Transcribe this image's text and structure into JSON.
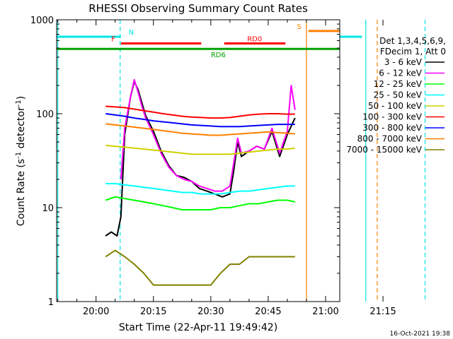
{
  "chart_data": {
    "type": "line",
    "title": "RHESSI Observing Summary Count Rates",
    "xlabel": "Start Time (22-Apr-11 19:49:42)",
    "ylabel_main": "Count Rate (s",
    "ylabel_sup1": "-1",
    "ylabel_mid": " detector",
    "ylabel_sup2": "-1",
    "ylabel_end": ")",
    "yscale": "log",
    "ylim": [
      1,
      1000
    ],
    "xlim_min": [
      -10.3,
      63.7
    ],
    "x_ticks_min": [
      0,
      15,
      30,
      45,
      60,
      75
    ],
    "x_tick_labels": [
      "20:00",
      "20:15",
      "20:30",
      "20:45",
      "21:00",
      "21:15"
    ],
    "y_ticks": [
      1,
      10,
      100,
      1000
    ],
    "y_tick_labels": [
      "1",
      "10",
      "100",
      "1000"
    ],
    "legend_header": [
      "Det 1,3,4,5,6,9,",
      "FDecim 1, Att 0"
    ],
    "legend_position": "right",
    "timestamp": "16-Oct-2021 19:38",
    "flags": [
      {
        "label": "N",
        "color": "#00e5e5",
        "start": -10.3,
        "end": 6.5,
        "y": 660,
        "label_x": 8.5
      },
      {
        "label": "N",
        "color": "#00e5e5",
        "start": 69.5,
        "end": 84.5,
        "y": 660,
        "label_x": null
      },
      {
        "label": "S",
        "color": "#ff8000",
        "start": 55.5,
        "end": 72.5,
        "y": 760,
        "label_x": 52.5
      },
      {
        "label": "F",
        "color": "#ff0000",
        "start": 6.5,
        "end": 27.5,
        "y": 560,
        "label_x": 4.0
      },
      {
        "label": "RD0",
        "color": "#ff0000",
        "start": 33.5,
        "end": 49.5,
        "y": 560,
        "label_x": 39.5
      },
      {
        "label": "RD6",
        "color": "#00a000",
        "start": -10.3,
        "end": 84.5,
        "y": 490,
        "label_x": 30.0
      }
    ],
    "vlines": [
      {
        "x": -10.0,
        "color": "#00e5e5",
        "dash": false
      },
      {
        "x": 6.3,
        "color": "#00e5e5",
        "dash": true
      },
      {
        "x": 55.0,
        "color": "#ff8000",
        "dash": false
      },
      {
        "x": 70.5,
        "color": "#00e5e5",
        "dash": false
      },
      {
        "x": 73.5,
        "color": "#ff8000",
        "dash": true
      },
      {
        "x": 86.0,
        "color": "#00e5e5",
        "dash": true
      }
    ],
    "series": [
      {
        "name": "3 - 6 keV",
        "color": "#000000",
        "x": [
          2.5,
          4,
          5.5,
          6.5,
          7.5,
          9,
          10,
          11,
          12,
          13,
          15,
          17,
          19,
          21,
          23,
          25,
          27,
          29,
          31,
          33,
          35,
          36,
          37,
          38,
          40,
          42,
          44,
          46,
          48,
          50,
          52
        ],
        "y": [
          5,
          5.5,
          5,
          8,
          60,
          150,
          220,
          180,
          130,
          95,
          65,
          40,
          28,
          22,
          21,
          19,
          16,
          15,
          14,
          13,
          14,
          25,
          50,
          35,
          40,
          45,
          42,
          65,
          35,
          60,
          90
        ]
      },
      {
        "name": "6 - 12 keV",
        "color": "#ff00ff",
        "x": [
          6.5,
          7.5,
          9,
          10,
          11,
          12,
          13,
          15,
          17,
          19,
          21,
          23,
          25,
          27,
          29,
          31,
          33,
          35,
          36,
          37,
          38,
          40,
          42,
          44,
          46,
          48,
          50,
          51,
          52
        ],
        "y": [
          20,
          70,
          150,
          230,
          170,
          120,
          90,
          60,
          38,
          27,
          22,
          20,
          19,
          17,
          16,
          15,
          15,
          17,
          30,
          55,
          38,
          40,
          45,
          42,
          70,
          38,
          65,
          200,
          110
        ]
      },
      {
        "name": "12 - 25 keV",
        "color": "#00ff00",
        "x": [
          2.5,
          5,
          7.5,
          10,
          12.5,
          15,
          17.5,
          20,
          22.5,
          25,
          27.5,
          30,
          32.5,
          35,
          37.5,
          40,
          42.5,
          45,
          47.5,
          50,
          52
        ],
        "y": [
          12,
          13,
          12.5,
          12,
          11.5,
          11,
          10.5,
          10,
          9.5,
          9.5,
          9.5,
          9.5,
          10,
          10,
          10.5,
          11,
          11,
          11.5,
          12,
          12,
          11.5
        ]
      },
      {
        "name": "25 - 50 keV",
        "color": "#00ffff",
        "x": [
          2.5,
          5,
          7.5,
          10,
          12.5,
          15,
          17.5,
          20,
          22.5,
          25,
          27.5,
          30,
          32.5,
          35,
          37.5,
          40,
          42.5,
          45,
          47.5,
          50,
          52
        ],
        "y": [
          18,
          18,
          17.5,
          17,
          16.5,
          16,
          15.5,
          15,
          14.5,
          14.5,
          14,
          14,
          14,
          14.5,
          15,
          15,
          15.5,
          16,
          16.5,
          17,
          17
        ]
      },
      {
        "name": "50 - 100 keV",
        "color": "#d0d000",
        "x": [
          2.5,
          5,
          7.5,
          10,
          12.5,
          15,
          17.5,
          20,
          22.5,
          25,
          27.5,
          30,
          32.5,
          35,
          37.5,
          40,
          42.5,
          45,
          47.5,
          50,
          52
        ],
        "y": [
          46,
          45,
          44,
          43,
          42,
          41,
          40,
          39,
          38,
          37,
          37,
          37,
          37,
          37,
          38,
          39,
          40,
          41,
          42,
          42,
          43
        ]
      },
      {
        "name": "100 - 300 keV",
        "color": "#ff0000",
        "x": [
          2.5,
          5,
          7.5,
          10,
          12.5,
          15,
          17.5,
          20,
          22.5,
          25,
          27.5,
          30,
          32.5,
          35,
          37.5,
          40,
          42.5,
          45,
          47.5,
          50,
          52
        ],
        "y": [
          120,
          118,
          116,
          112,
          108,
          104,
          100,
          97,
          94,
          92,
          91,
          90,
          90,
          91,
          94,
          97,
          99,
          100,
          100,
          99,
          99
        ]
      },
      {
        "name": "300 - 800 keV",
        "color": "#0000ff",
        "x": [
          2.5,
          5,
          7.5,
          10,
          12.5,
          15,
          17.5,
          20,
          22.5,
          25,
          27.5,
          30,
          32.5,
          35,
          37.5,
          40,
          42.5,
          45,
          47.5,
          50,
          52
        ],
        "y": [
          100,
          97,
          94,
          90,
          87,
          84,
          82,
          80,
          78,
          76,
          75,
          74,
          73,
          73,
          73,
          74,
          75,
          76,
          77,
          77,
          77
        ]
      },
      {
        "name": "800 - 7000 keV",
        "color": "#ff8000",
        "x": [
          2.5,
          5,
          7.5,
          10,
          12.5,
          15,
          17.5,
          20,
          22.5,
          25,
          27.5,
          30,
          32.5,
          35,
          37.5,
          40,
          42.5,
          45,
          47.5,
          50,
          52
        ],
        "y": [
          78,
          76,
          74,
          72,
          70,
          68,
          66,
          64,
          62,
          61,
          60,
          59,
          59,
          60,
          61,
          62,
          63,
          64,
          63,
          62,
          61
        ]
      },
      {
        "name": "7000 - 15000 keV",
        "color": "#808000",
        "x": [
          2.5,
          5,
          7.5,
          10,
          12.5,
          15,
          17.5,
          20,
          22.5,
          25,
          27.5,
          30,
          32.5,
          35,
          37.5,
          40,
          42.5,
          45,
          47.5,
          50,
          52
        ],
        "y": [
          3,
          3.5,
          3,
          2.5,
          2,
          1.5,
          1.5,
          1.5,
          1.5,
          1.5,
          1.5,
          1.5,
          2,
          2.5,
          2.5,
          3,
          3,
          3,
          3,
          3,
          3
        ]
      }
    ]
  }
}
